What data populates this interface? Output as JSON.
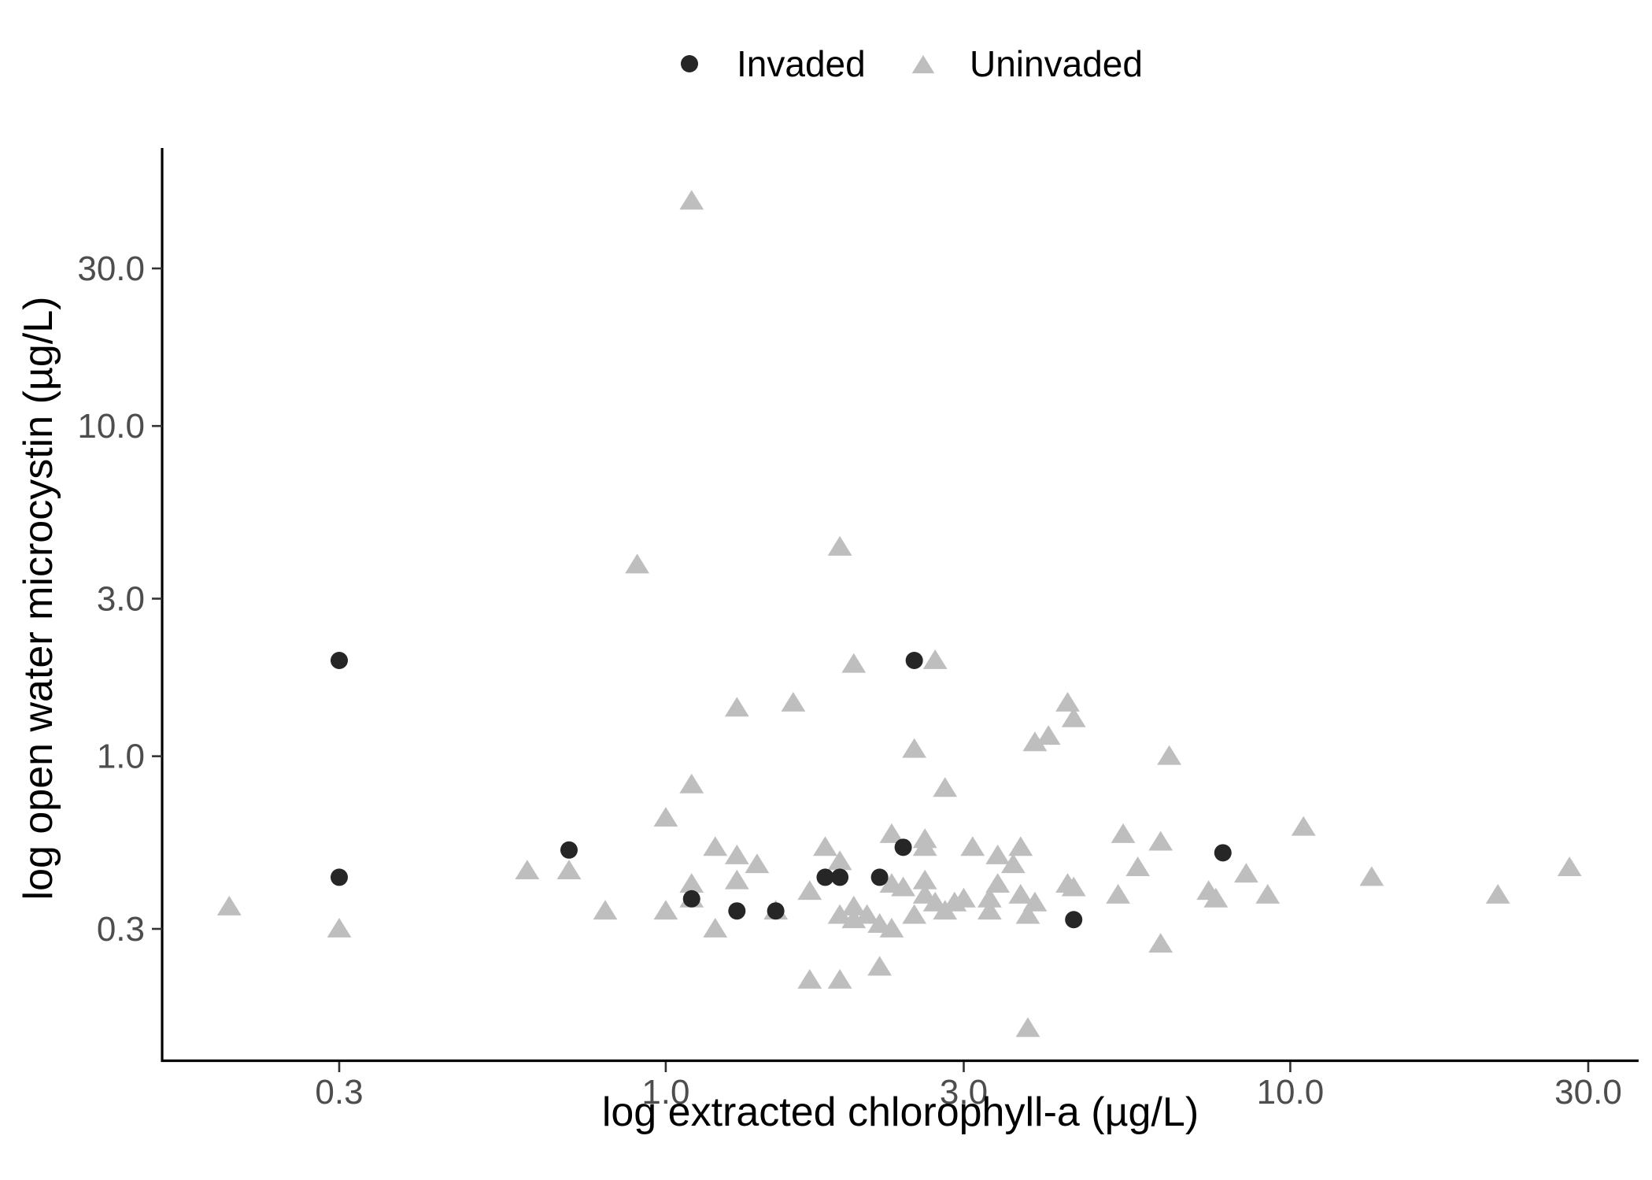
{
  "chart_data": {
    "type": "scatter",
    "xlabel": "log extracted chlorophyll-a (µg/L)",
    "ylabel": "log open water microcystin (µg/L)",
    "x_scale": "log10",
    "y_scale": "log10",
    "xlim": [
      0.17,
      33
    ],
    "ylim": [
      0.1,
      80
    ],
    "x_ticks": [
      0.3,
      1.0,
      3.0,
      10.0,
      30.0
    ],
    "x_tick_labels": [
      "0.3",
      "1.0",
      "3.0",
      "10.0",
      "30.0"
    ],
    "y_ticks": [
      0.3,
      1.0,
      3.0,
      10.0,
      30.0
    ],
    "y_tick_labels": [
      "0.3",
      "1.0",
      "3.0",
      "10.0",
      "30.0"
    ],
    "grid": false,
    "legend_position": "top",
    "series": [
      {
        "name": "Invaded",
        "marker": "circle",
        "color": "#262626",
        "points": [
          [
            0.3,
            1.95
          ],
          [
            0.3,
            0.43
          ],
          [
            0.7,
            0.52
          ],
          [
            1.1,
            0.37
          ],
          [
            1.3,
            0.34
          ],
          [
            1.5,
            0.34
          ],
          [
            1.8,
            0.43
          ],
          [
            1.9,
            0.43
          ],
          [
            2.2,
            0.43
          ],
          [
            2.4,
            0.53
          ],
          [
            2.5,
            1.95
          ],
          [
            4.5,
            0.32
          ],
          [
            7.8,
            0.51
          ]
        ]
      },
      {
        "name": "Uninvaded",
        "marker": "triangle",
        "color": "#bebebe",
        "points": [
          [
            0.2,
            0.35
          ],
          [
            0.3,
            0.3
          ],
          [
            0.6,
            0.45
          ],
          [
            0.7,
            0.45
          ],
          [
            0.8,
            0.34
          ],
          [
            0.9,
            3.8
          ],
          [
            1.0,
            0.34
          ],
          [
            1.0,
            0.65
          ],
          [
            1.1,
            48.0
          ],
          [
            1.1,
            0.82
          ],
          [
            1.1,
            0.41
          ],
          [
            1.1,
            0.37
          ],
          [
            1.2,
            0.53
          ],
          [
            1.2,
            0.3
          ],
          [
            1.3,
            1.4
          ],
          [
            1.3,
            0.5
          ],
          [
            1.3,
            0.42
          ],
          [
            1.4,
            0.47
          ],
          [
            1.5,
            0.34
          ],
          [
            1.6,
            1.45
          ],
          [
            1.7,
            0.39
          ],
          [
            1.7,
            0.21
          ],
          [
            1.8,
            0.53
          ],
          [
            1.9,
            4.3
          ],
          [
            1.9,
            0.48
          ],
          [
            1.9,
            0.21
          ],
          [
            1.9,
            0.33
          ],
          [
            2.0,
            1.9
          ],
          [
            2.0,
            0.35
          ],
          [
            2.0,
            0.32
          ],
          [
            2.1,
            0.33
          ],
          [
            2.2,
            0.31
          ],
          [
            2.2,
            0.23
          ],
          [
            2.3,
            0.58
          ],
          [
            2.3,
            0.41
          ],
          [
            2.3,
            0.3
          ],
          [
            2.4,
            0.4
          ],
          [
            2.5,
            1.05
          ],
          [
            2.5,
            0.33
          ],
          [
            2.6,
            0.56
          ],
          [
            2.6,
            0.53
          ],
          [
            2.6,
            0.42
          ],
          [
            2.6,
            0.38
          ],
          [
            2.7,
            1.95
          ],
          [
            2.7,
            0.36
          ],
          [
            2.8,
            0.8
          ],
          [
            2.8,
            0.34
          ],
          [
            2.9,
            0.36
          ],
          [
            3.0,
            0.37
          ],
          [
            3.1,
            0.53
          ],
          [
            3.3,
            0.37
          ],
          [
            3.3,
            0.34
          ],
          [
            3.4,
            0.5
          ],
          [
            3.4,
            0.41
          ],
          [
            3.6,
            0.47
          ],
          [
            3.7,
            0.53
          ],
          [
            3.7,
            0.38
          ],
          [
            3.8,
            0.33
          ],
          [
            3.8,
            0.15
          ],
          [
            3.9,
            1.1
          ],
          [
            3.9,
            0.36
          ],
          [
            4.1,
            1.15
          ],
          [
            4.4,
            0.41
          ],
          [
            4.4,
            1.45
          ],
          [
            4.5,
            1.3
          ],
          [
            4.5,
            0.4
          ],
          [
            5.3,
            0.38
          ],
          [
            5.4,
            0.58
          ],
          [
            5.7,
            0.46
          ],
          [
            6.2,
            0.55
          ],
          [
            6.2,
            0.27
          ],
          [
            6.4,
            1.0
          ],
          [
            7.4,
            0.39
          ],
          [
            7.6,
            0.37
          ],
          [
            8.5,
            0.44
          ],
          [
            9.2,
            0.38
          ],
          [
            10.5,
            0.61
          ],
          [
            13.5,
            0.43
          ],
          [
            21.5,
            0.38
          ],
          [
            28.0,
            0.46
          ]
        ]
      }
    ]
  }
}
